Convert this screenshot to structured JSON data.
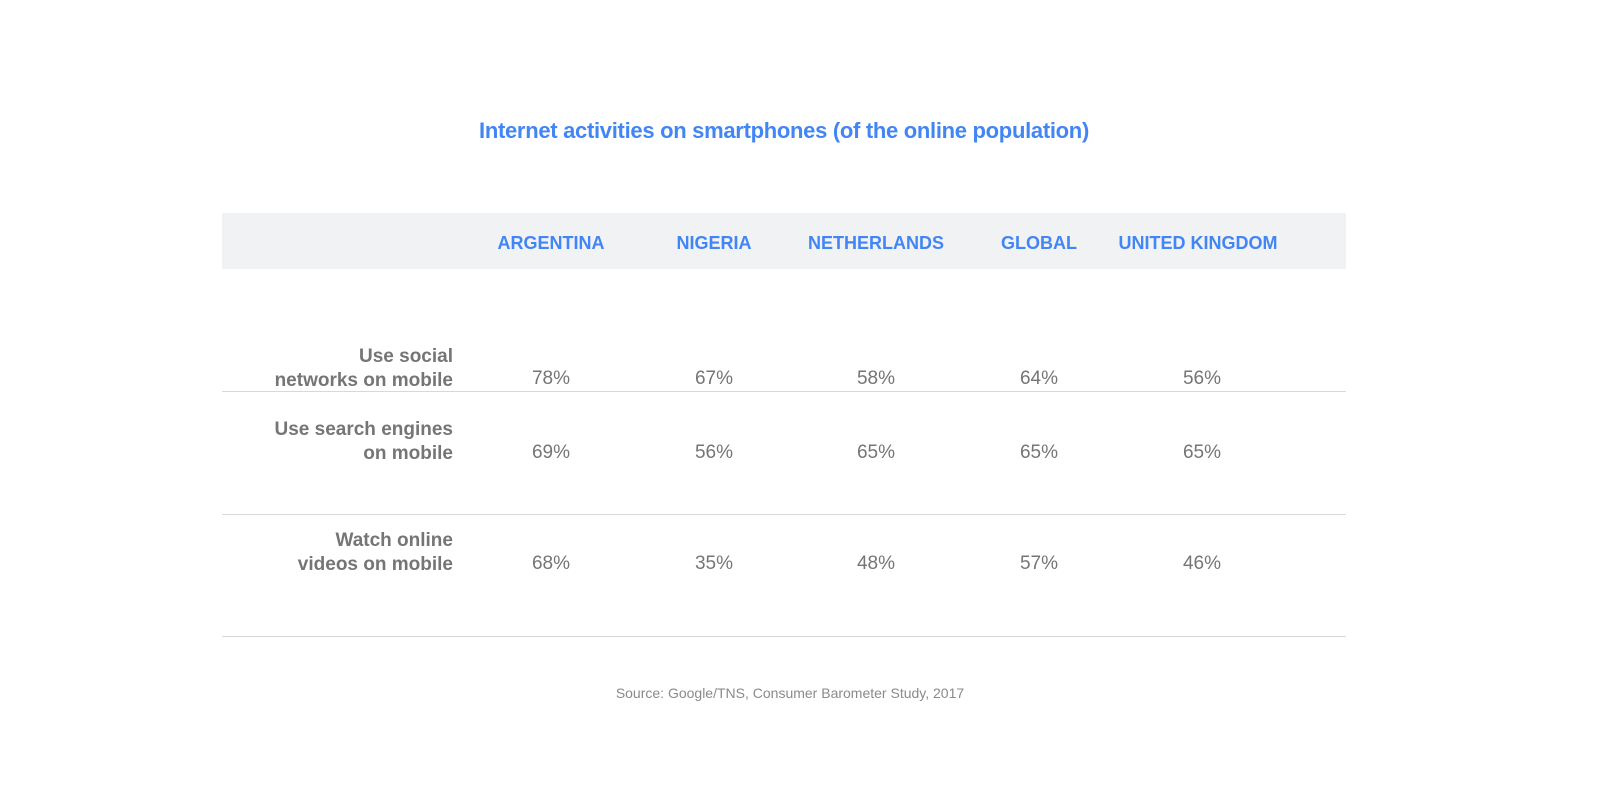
{
  "chart_data": {
    "type": "table",
    "title": "Internet activities on smartphones (of the online population)",
    "columns": [
      "ARGENTINA",
      "NIGERIA",
      "NETHERLANDS",
      "GLOBAL",
      "UNITED KINGDOM"
    ],
    "rows": [
      {
        "label": "Use social networks on mobile",
        "values": [
          "78%",
          "67%",
          "58%",
          "64%",
          "56%"
        ]
      },
      {
        "label": "Use search engines on mobile",
        "values": [
          "69%",
          "56%",
          "65%",
          "65%",
          "65%"
        ]
      },
      {
        "label": "Watch online videos on mobile",
        "values": [
          "68%",
          "35%",
          "48%",
          "57%",
          "46%"
        ]
      }
    ],
    "source": "Source: Google/TNS, Consumer Barometer Study, 2017"
  },
  "colors": {
    "accent": "#4285f4",
    "header_bg": "#f1f2f4",
    "text": "#757575",
    "rule": "#d8d8d8"
  }
}
